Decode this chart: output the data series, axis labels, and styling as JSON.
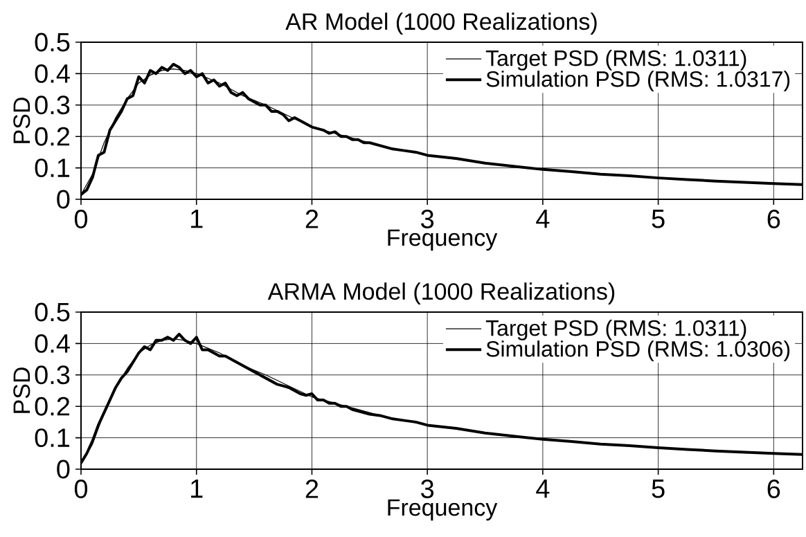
{
  "chart_data": [
    {
      "type": "line",
      "title": "AR Model (1000 Realizations)",
      "xlabel": "Frequency",
      "ylabel": "PSD",
      "xlim": [
        0,
        6.25
      ],
      "ylim": [
        0,
        0.5
      ],
      "xticks": [
        0,
        1,
        2,
        3,
        4,
        5,
        6
      ],
      "yticks": [
        0,
        0.1,
        0.2,
        0.3,
        0.4,
        0.5
      ],
      "grid": true,
      "legend": "top right",
      "series": [
        {
          "name": "Target PSD (RMS: 1.0311)",
          "color": "#000000",
          "x": [
            0,
            0.1,
            0.2,
            0.3,
            0.4,
            0.5,
            0.6,
            0.7,
            0.8,
            0.9,
            1.0,
            1.2,
            1.4,
            1.6,
            1.8,
            2.0,
            2.2,
            2.4,
            2.6,
            2.8,
            3.0,
            3.5,
            4.0,
            4.5,
            5.0,
            5.5,
            6.0,
            6.25
          ],
          "values": [
            0.015,
            0.08,
            0.18,
            0.26,
            0.32,
            0.37,
            0.395,
            0.41,
            0.415,
            0.41,
            0.4,
            0.37,
            0.33,
            0.3,
            0.265,
            0.23,
            0.21,
            0.19,
            0.17,
            0.155,
            0.14,
            0.115,
            0.095,
            0.08,
            0.068,
            0.058,
            0.05,
            0.047
          ]
        },
        {
          "name": "Simulation PSD (RMS: 1.0317)",
          "color": "#000000",
          "x": [
            0,
            0.05,
            0.1,
            0.15,
            0.2,
            0.25,
            0.3,
            0.35,
            0.4,
            0.45,
            0.5,
            0.55,
            0.6,
            0.65,
            0.7,
            0.75,
            0.8,
            0.85,
            0.9,
            0.95,
            1.0,
            1.05,
            1.1,
            1.15,
            1.2,
            1.25,
            1.3,
            1.35,
            1.4,
            1.45,
            1.5,
            1.55,
            1.6,
            1.65,
            1.7,
            1.75,
            1.8,
            1.85,
            1.9,
            1.95,
            2.0,
            2.05,
            2.1,
            2.15,
            2.2,
            2.25,
            2.3,
            2.35,
            2.4,
            2.45,
            2.5,
            2.6,
            2.7,
            2.8,
            2.9,
            3.0,
            3.25,
            3.5,
            3.75,
            4.0,
            4.25,
            4.5,
            4.75,
            5.0,
            5.25,
            5.5,
            5.75,
            6.0,
            6.25
          ],
          "values": [
            0.015,
            0.03,
            0.07,
            0.14,
            0.15,
            0.22,
            0.25,
            0.28,
            0.32,
            0.33,
            0.39,
            0.37,
            0.41,
            0.4,
            0.42,
            0.41,
            0.43,
            0.42,
            0.4,
            0.41,
            0.39,
            0.4,
            0.37,
            0.38,
            0.36,
            0.37,
            0.34,
            0.33,
            0.34,
            0.32,
            0.31,
            0.3,
            0.3,
            0.28,
            0.28,
            0.27,
            0.25,
            0.26,
            0.25,
            0.24,
            0.23,
            0.225,
            0.22,
            0.21,
            0.215,
            0.2,
            0.2,
            0.19,
            0.19,
            0.18,
            0.18,
            0.17,
            0.16,
            0.155,
            0.15,
            0.14,
            0.13,
            0.115,
            0.105,
            0.095,
            0.088,
            0.08,
            0.075,
            0.068,
            0.063,
            0.058,
            0.054,
            0.05,
            0.047
          ]
        }
      ]
    },
    {
      "type": "line",
      "title": "ARMA Model (1000 Realizations)",
      "xlabel": "Frequency",
      "ylabel": "PSD",
      "xlim": [
        0,
        6.25
      ],
      "ylim": [
        0,
        0.5
      ],
      "xticks": [
        0,
        1,
        2,
        3,
        4,
        5,
        6
      ],
      "yticks": [
        0,
        0.1,
        0.2,
        0.3,
        0.4,
        0.5
      ],
      "grid": true,
      "legend": "top right",
      "series": [
        {
          "name": "Target PSD (RMS: 1.0311)",
          "color": "#000000",
          "x": [
            0,
            0.1,
            0.2,
            0.3,
            0.4,
            0.5,
            0.6,
            0.7,
            0.8,
            0.9,
            1.0,
            1.2,
            1.4,
            1.6,
            1.8,
            2.0,
            2.2,
            2.4,
            2.6,
            2.8,
            3.0,
            3.5,
            4.0,
            4.5,
            5.0,
            5.5,
            6.0,
            6.25
          ],
          "values": [
            0.015,
            0.08,
            0.18,
            0.26,
            0.32,
            0.37,
            0.395,
            0.41,
            0.415,
            0.41,
            0.4,
            0.37,
            0.33,
            0.3,
            0.265,
            0.23,
            0.21,
            0.19,
            0.17,
            0.155,
            0.14,
            0.115,
            0.095,
            0.08,
            0.068,
            0.058,
            0.05,
            0.047
          ]
        },
        {
          "name": "Simulation PSD (RMS: 1.0306)",
          "color": "#000000",
          "x": [
            0,
            0.05,
            0.1,
            0.15,
            0.2,
            0.25,
            0.3,
            0.35,
            0.4,
            0.45,
            0.5,
            0.55,
            0.6,
            0.65,
            0.7,
            0.75,
            0.8,
            0.85,
            0.9,
            0.95,
            1.0,
            1.05,
            1.1,
            1.15,
            1.2,
            1.25,
            1.3,
            1.35,
            1.4,
            1.45,
            1.5,
            1.55,
            1.6,
            1.65,
            1.7,
            1.75,
            1.8,
            1.85,
            1.9,
            1.95,
            2.0,
            2.05,
            2.1,
            2.15,
            2.2,
            2.25,
            2.3,
            2.35,
            2.4,
            2.45,
            2.5,
            2.6,
            2.7,
            2.8,
            2.9,
            3.0,
            3.25,
            3.5,
            3.75,
            4.0,
            4.25,
            4.5,
            4.75,
            5.0,
            5.25,
            5.5,
            5.75,
            6.0,
            6.25
          ],
          "values": [
            0.02,
            0.05,
            0.09,
            0.14,
            0.18,
            0.22,
            0.26,
            0.29,
            0.31,
            0.34,
            0.37,
            0.39,
            0.38,
            0.41,
            0.41,
            0.42,
            0.41,
            0.43,
            0.41,
            0.4,
            0.42,
            0.38,
            0.38,
            0.37,
            0.36,
            0.36,
            0.35,
            0.34,
            0.33,
            0.32,
            0.31,
            0.3,
            0.29,
            0.28,
            0.27,
            0.265,
            0.26,
            0.25,
            0.24,
            0.235,
            0.24,
            0.22,
            0.22,
            0.21,
            0.21,
            0.2,
            0.2,
            0.19,
            0.185,
            0.18,
            0.175,
            0.17,
            0.16,
            0.155,
            0.15,
            0.14,
            0.13,
            0.115,
            0.105,
            0.095,
            0.088,
            0.08,
            0.075,
            0.068,
            0.063,
            0.058,
            0.054,
            0.05,
            0.047
          ]
        }
      ]
    }
  ]
}
